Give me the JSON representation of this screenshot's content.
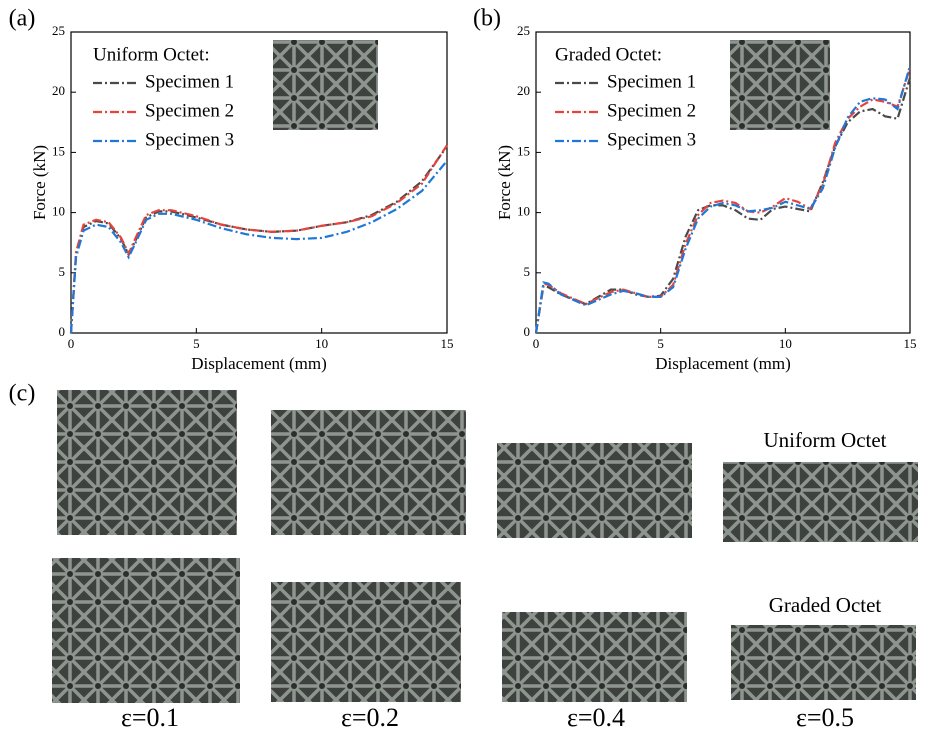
{
  "chart_data": [
    {
      "type": "line",
      "panel": "(a)",
      "legend_title": "Uniform Octet:",
      "x_label": "Displacement (mm)",
      "y_label": "Force (kN)",
      "x": [
        0,
        0.2,
        0.5,
        1,
        1.5,
        2,
        2.3,
        2.6,
        3,
        3.5,
        4,
        5,
        6,
        7,
        8,
        9,
        10,
        11,
        12,
        13,
        14,
        15
      ],
      "series": [
        {
          "name": "Specimen 1",
          "color": "#4a4a4a",
          "values": [
            0,
            6.5,
            8.8,
            9.3,
            9.1,
            7.8,
            6.5,
            7.8,
            9.6,
            10.1,
            10.1,
            9.6,
            9.0,
            8.6,
            8.4,
            8.5,
            8.9,
            9.2,
            9.8,
            10.9,
            12.6,
            15.5
          ]
        },
        {
          "name": "Specimen 2",
          "color": "#e8423c",
          "values": [
            0,
            6.7,
            9.0,
            9.4,
            9.2,
            7.9,
            6.6,
            8.0,
            9.8,
            10.2,
            10.2,
            9.7,
            9.0,
            8.6,
            8.4,
            8.5,
            8.9,
            9.2,
            9.7,
            10.8,
            12.4,
            15.6
          ]
        },
        {
          "name": "Specimen 3",
          "color": "#1f78d6",
          "values": [
            0,
            6.3,
            8.5,
            9.0,
            8.8,
            7.5,
            6.3,
            7.6,
            9.4,
            9.9,
            9.9,
            9.4,
            8.7,
            8.2,
            7.9,
            7.8,
            7.9,
            8.4,
            9.2,
            10.3,
            11.8,
            14.3
          ]
        }
      ],
      "xlim": [
        0,
        15
      ],
      "xticks": [
        0,
        5,
        10,
        15
      ],
      "ylim": [
        0,
        25
      ],
      "yticks": [
        0,
        5,
        10,
        15,
        20,
        25
      ]
    },
    {
      "type": "line",
      "panel": "(b)",
      "legend_title": "Graded Octet:",
      "x_label": "Displacement (mm)",
      "y_label": "Force (kN)",
      "x": [
        0,
        0.3,
        0.5,
        1,
        2,
        3,
        3.5,
        4,
        4.5,
        5,
        5.5,
        6,
        6.5,
        7,
        7.5,
        8,
        8.5,
        9,
        9.5,
        10,
        10.5,
        11,
        11.5,
        12,
        12.5,
        13,
        13.5,
        14,
        14.5,
        15
      ],
      "series": [
        {
          "name": "Specimen 1",
          "color": "#4a4a4a",
          "values": [
            0,
            3.9,
            3.8,
            3.2,
            2.4,
            3.6,
            3.6,
            3.2,
            3.0,
            3.1,
            4.5,
            8.0,
            10.2,
            10.6,
            10.6,
            10.2,
            9.5,
            9.4,
            10.3,
            10.5,
            10.3,
            10.1,
            12.5,
            15.5,
            17.5,
            18.4,
            18.6,
            18.0,
            17.8,
            21.2
          ]
        },
        {
          "name": "Specimen 2",
          "color": "#e8423c",
          "values": [
            0,
            4.1,
            4.0,
            3.3,
            2.4,
            3.4,
            3.6,
            3.3,
            3.0,
            3.0,
            4.0,
            7.4,
            9.8,
            10.8,
            11.0,
            10.8,
            10.1,
            10.0,
            10.5,
            11.2,
            10.9,
            10.3,
            12.3,
            15.8,
            17.8,
            18.8,
            19.4,
            19.2,
            18.8,
            22.0
          ]
        },
        {
          "name": "Specimen 3",
          "color": "#1f78d6",
          "values": [
            0,
            4.2,
            4.1,
            3.2,
            2.3,
            3.2,
            3.5,
            3.3,
            3.0,
            3.0,
            3.8,
            7.0,
            9.5,
            10.5,
            10.8,
            10.6,
            10.1,
            10.2,
            10.4,
            10.9,
            10.6,
            10.3,
            12.0,
            15.4,
            17.9,
            19.2,
            19.5,
            19.4,
            18.6,
            22.2
          ]
        }
      ],
      "xlim": [
        0,
        15
      ],
      "xticks": [
        0,
        5,
        10,
        15
      ],
      "ylim": [
        0,
        25
      ],
      "yticks": [
        0,
        5,
        10,
        15,
        20,
        25
      ]
    }
  ],
  "photos": {
    "panel": "(c)",
    "row_labels": [
      "Uniform Octet",
      "Graded Octet"
    ],
    "strains": [
      "ε=0.1",
      "ε=0.2",
      "ε=0.4",
      "ε=0.5"
    ]
  }
}
